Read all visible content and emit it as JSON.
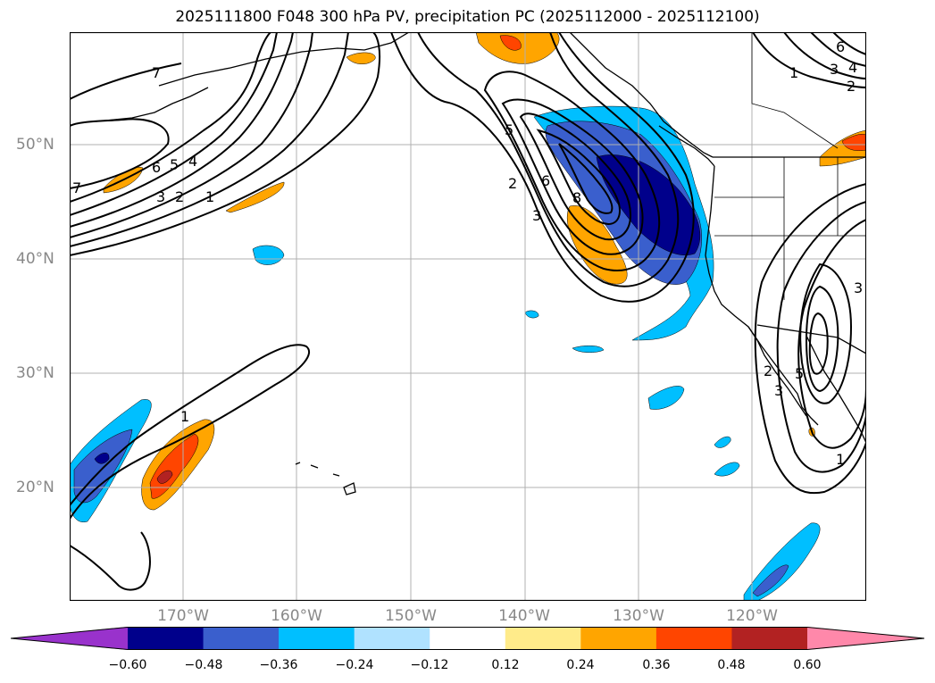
{
  "title": "2025111800 F048 300 hPa PV, precipitation PC (2025112000 - 2025112100)",
  "latitude_labels": [
    "50°N",
    "40°N",
    "30°N",
    "20°N"
  ],
  "longitude_labels": [
    "170°W",
    "160°W",
    "150°W",
    "140°W",
    "130°W",
    "120°W"
  ],
  "colorbar": {
    "ticks": [
      "−0.60",
      "−0.48",
      "−0.36",
      "−0.24",
      "−0.12",
      "0.12",
      "0.24",
      "0.36",
      "0.48",
      "0.60"
    ],
    "colors": [
      "#9932cc",
      "#00008b",
      "#3a5fcd",
      "#00bfff",
      "#b0e2ff",
      "#ffffff",
      "#ffeb8a",
      "#ffa500",
      "#ff4500",
      "#b22222",
      "#ff88aa"
    ]
  },
  "contour_labels": [
    "7",
    "6",
    "5",
    "4",
    "3",
    "2",
    "1",
    "7",
    "1",
    "5",
    "2",
    "6",
    "8",
    "3",
    "1",
    "3",
    "4",
    "2",
    "6",
    "3",
    "2",
    "3",
    "5",
    "1"
  ],
  "map": {
    "contour_color": "#000000",
    "coastline_color": "#000000",
    "gridline_color": "#b0b0b0"
  }
}
